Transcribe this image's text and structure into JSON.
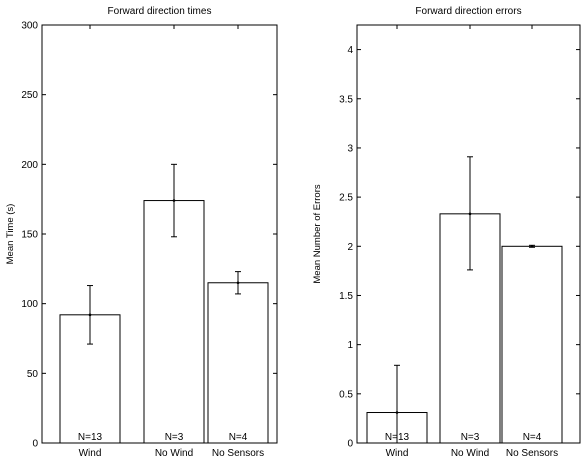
{
  "chart_data": [
    {
      "type": "bar",
      "title": "Forward direction times",
      "xlabel": "",
      "ylabel": "Mean Time (s)",
      "categories": [
        "Wind",
        "No Wind",
        "No Sensors"
      ],
      "values": [
        92,
        174,
        115
      ],
      "error_low": [
        71,
        148,
        107
      ],
      "error_high": [
        113,
        200,
        123
      ],
      "annotations": [
        "N=13",
        "N=3",
        "N=4"
      ],
      "ylim": [
        0,
        300
      ],
      "yticks": [
        "0",
        "50",
        "100",
        "150",
        "200",
        "250",
        "300"
      ],
      "grid": false
    },
    {
      "type": "bar",
      "title": "Forward direction errors",
      "xlabel": "",
      "ylabel": "Mean Number of Errors",
      "categories": [
        "Wind",
        "No Wind",
        "No Sensors"
      ],
      "values": [
        0.31,
        2.33,
        2.0
      ],
      "error_low": [
        0,
        1.76,
        1.99
      ],
      "error_high": [
        0.79,
        2.91,
        2.01
      ],
      "annotations": [
        "N=13",
        "N=3",
        "N=4"
      ],
      "ylim": [
        0,
        4.25
      ],
      "yticks": [
        "0",
        "0.5",
        "1",
        "1.5",
        "2",
        "2.5",
        "3",
        "3.5",
        "4"
      ],
      "grid": false
    }
  ]
}
